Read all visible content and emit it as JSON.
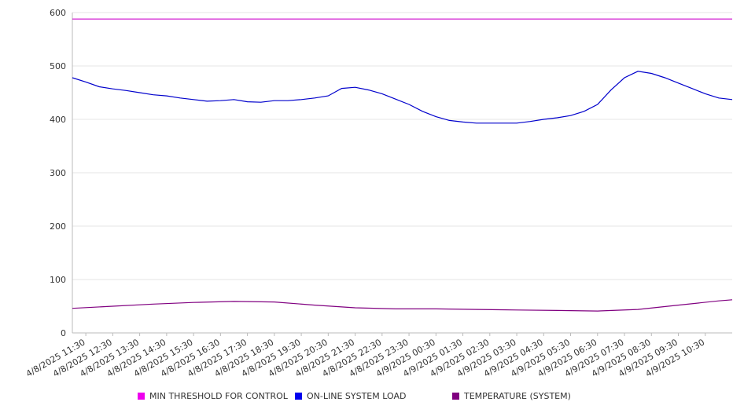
{
  "chart_data": {
    "type": "line",
    "title": "",
    "xlabel": "",
    "ylabel": "",
    "ylim": [
      0,
      600
    ],
    "y_ticks": [
      0,
      100,
      200,
      300,
      400,
      500,
      600
    ],
    "x_start": "4/8/2025 11:00",
    "x_end": "4/9/2025 11:30",
    "x_ticks": [
      "4/8/2025 11:30",
      "4/8/2025 12:30",
      "4/8/2025 13:30",
      "4/8/2025 14:30",
      "4/8/2025 15:30",
      "4/8/2025 16:30",
      "4/8/2025 17:30",
      "4/8/2025 18:30",
      "4/8/2025 19:30",
      "4/8/2025 20:30",
      "4/8/2025 21:30",
      "4/8/2025 22:30",
      "4/8/2025 23:30",
      "4/9/2025 00:30",
      "4/9/2025 01:30",
      "4/9/2025 02:30",
      "4/9/2025 03:30",
      "4/9/2025 04:30",
      "4/9/2025 05:30",
      "4/9/2025 06:30",
      "4/9/2025 07:30",
      "4/9/2025 08:30",
      "4/9/2025 09:30",
      "4/9/2025 10:30"
    ],
    "grid": true,
    "legend_position": "bottom",
    "series": [
      {
        "name": "MIN THRESHOLD FOR CONTROL",
        "color": "#cc00cc",
        "x": [
          "4/8/2025 11:00",
          "4/9/2025 11:30"
        ],
        "values": [
          588,
          588
        ]
      },
      {
        "name": "ON-LINE SYSTEM LOAD",
        "color": "#0000cc",
        "x": [
          "4/8/2025 11:00",
          "4/8/2025 11:30",
          "4/8/2025 12:00",
          "4/8/2025 12:30",
          "4/8/2025 13:00",
          "4/8/2025 13:30",
          "4/8/2025 14:00",
          "4/8/2025 14:30",
          "4/8/2025 15:00",
          "4/8/2025 15:30",
          "4/8/2025 16:00",
          "4/8/2025 16:30",
          "4/8/2025 17:00",
          "4/8/2025 17:30",
          "4/8/2025 18:00",
          "4/8/2025 18:30",
          "4/8/2025 19:00",
          "4/8/2025 19:30",
          "4/8/2025 20:00",
          "4/8/2025 20:30",
          "4/8/2025 21:00",
          "4/8/2025 21:30",
          "4/8/2025 22:00",
          "4/8/2025 22:30",
          "4/8/2025 23:00",
          "4/8/2025 23:30",
          "4/9/2025 00:00",
          "4/9/2025 00:30",
          "4/9/2025 01:00",
          "4/9/2025 01:30",
          "4/9/2025 02:00",
          "4/9/2025 02:30",
          "4/9/2025 03:00",
          "4/9/2025 03:30",
          "4/9/2025 04:00",
          "4/9/2025 04:30",
          "4/9/2025 05:00",
          "4/9/2025 05:30",
          "4/9/2025 06:00",
          "4/9/2025 06:30",
          "4/9/2025 07:00",
          "4/9/2025 07:30",
          "4/9/2025 08:00",
          "4/9/2025 08:30",
          "4/9/2025 09:00",
          "4/9/2025 09:30",
          "4/9/2025 10:00",
          "4/9/2025 10:30",
          "4/9/2025 11:00",
          "4/9/2025 11:30"
        ],
        "values": [
          478,
          470,
          461,
          457,
          454,
          450,
          446,
          444,
          440,
          437,
          434,
          435,
          437,
          433,
          432,
          435,
          435,
          437,
          440,
          444,
          458,
          460,
          455,
          448,
          438,
          428,
          415,
          405,
          398,
          395,
          393,
          393,
          393,
          393,
          396,
          400,
          403,
          407,
          415,
          428,
          455,
          478,
          490,
          486,
          478,
          468,
          458,
          448,
          440,
          437
        ]
      },
      {
        "name": "TEMPERATURE (SYSTEM)",
        "color": "#800080",
        "x": [
          "4/8/2025 11:00",
          "4/8/2025 12:30",
          "4/8/2025 14:00",
          "4/8/2025 15:30",
          "4/8/2025 17:00",
          "4/8/2025 18:30",
          "4/8/2025 20:00",
          "4/8/2025 21:30",
          "4/8/2025 23:00",
          "4/9/2025 00:30",
          "4/9/2025 02:00",
          "4/9/2025 03:30",
          "4/9/2025 05:00",
          "4/9/2025 06:30",
          "4/9/2025 08:00",
          "4/9/2025 09:30",
          "4/9/2025 11:00",
          "4/9/2025 11:30"
        ],
        "values": [
          46,
          50,
          54,
          57,
          59,
          58,
          52,
          47,
          45,
          45,
          44,
          43,
          42,
          41,
          44,
          52,
          60,
          62
        ]
      }
    ]
  }
}
